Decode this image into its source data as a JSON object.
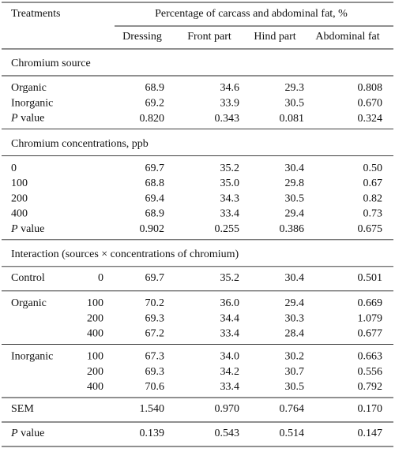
{
  "table": {
    "header": {
      "first": "Treatments",
      "span": "Percentage of carcass and abdominal fat, %",
      "columns": [
        "Dressing",
        "Front part",
        "Hind part",
        "Abdominal fat"
      ]
    },
    "blocks": [
      {
        "title": "Chromium source"
      },
      {
        "rows": [
          {
            "label": "Organic",
            "values": [
              "68.9",
              "34.6",
              "29.3",
              "0.808"
            ]
          },
          {
            "label": "Inorganic",
            "values": [
              "69.2",
              "33.9",
              "30.5",
              "0.670"
            ]
          },
          {
            "label_parts": [
              "P",
              " value"
            ],
            "values": [
              "0.820",
              "0.343",
              "0.081",
              "0.324"
            ]
          }
        ]
      },
      {
        "title": "Chromium concentrations, ppb"
      },
      {
        "rows": [
          {
            "label": "0",
            "values": [
              "69.7",
              "35.2",
              "30.4",
              "0.50"
            ]
          },
          {
            "label": "100",
            "values": [
              "68.8",
              "35.0",
              "29.8",
              "0.67"
            ]
          },
          {
            "label": "200",
            "values": [
              "69.4",
              "34.3",
              "30.5",
              "0.82"
            ]
          },
          {
            "label": "400",
            "values": [
              "68.9",
              "33.4",
              "29.4",
              "0.73"
            ]
          },
          {
            "label_parts": [
              "P",
              " value"
            ],
            "values": [
              "0.902",
              "0.255",
              "0.386",
              "0.675"
            ]
          }
        ]
      },
      {
        "title": "Interaction (sources × concentrations of chromium)"
      },
      {
        "rows": [
          {
            "label": "Control",
            "sub": "0",
            "values": [
              "69.7",
              "35.2",
              "30.4",
              "0.501"
            ]
          }
        ]
      },
      {
        "rows": [
          {
            "label": "Organic",
            "sub": "100",
            "values": [
              "70.2",
              "36.0",
              "29.4",
              "0.669"
            ]
          },
          {
            "sub": "200",
            "values": [
              "69.3",
              "34.4",
              "30.3",
              "1.079"
            ]
          },
          {
            "sub": "400",
            "values": [
              "67.2",
              "33.4",
              "28.4",
              "0.677"
            ]
          }
        ]
      },
      {
        "rows": [
          {
            "label": "Inorganic",
            "sub": "100",
            "values": [
              "67.3",
              "34.0",
              "30.2",
              "0.663"
            ]
          },
          {
            "sub": "200",
            "values": [
              "69.3",
              "34.2",
              "30.7",
              "0.556"
            ]
          },
          {
            "sub": "400",
            "values": [
              "70.6",
              "33.4",
              "30.5",
              "0.792"
            ]
          }
        ]
      },
      {
        "rows": [
          {
            "label": "SEM",
            "values": [
              "1.540",
              "0.970",
              "0.764",
              "0.170"
            ]
          }
        ]
      },
      {
        "rows": [
          {
            "label_parts": [
              "P",
              " value"
            ],
            "values": [
              "0.139",
              "0.543",
              "0.514",
              "0.147"
            ]
          }
        ]
      }
    ]
  }
}
